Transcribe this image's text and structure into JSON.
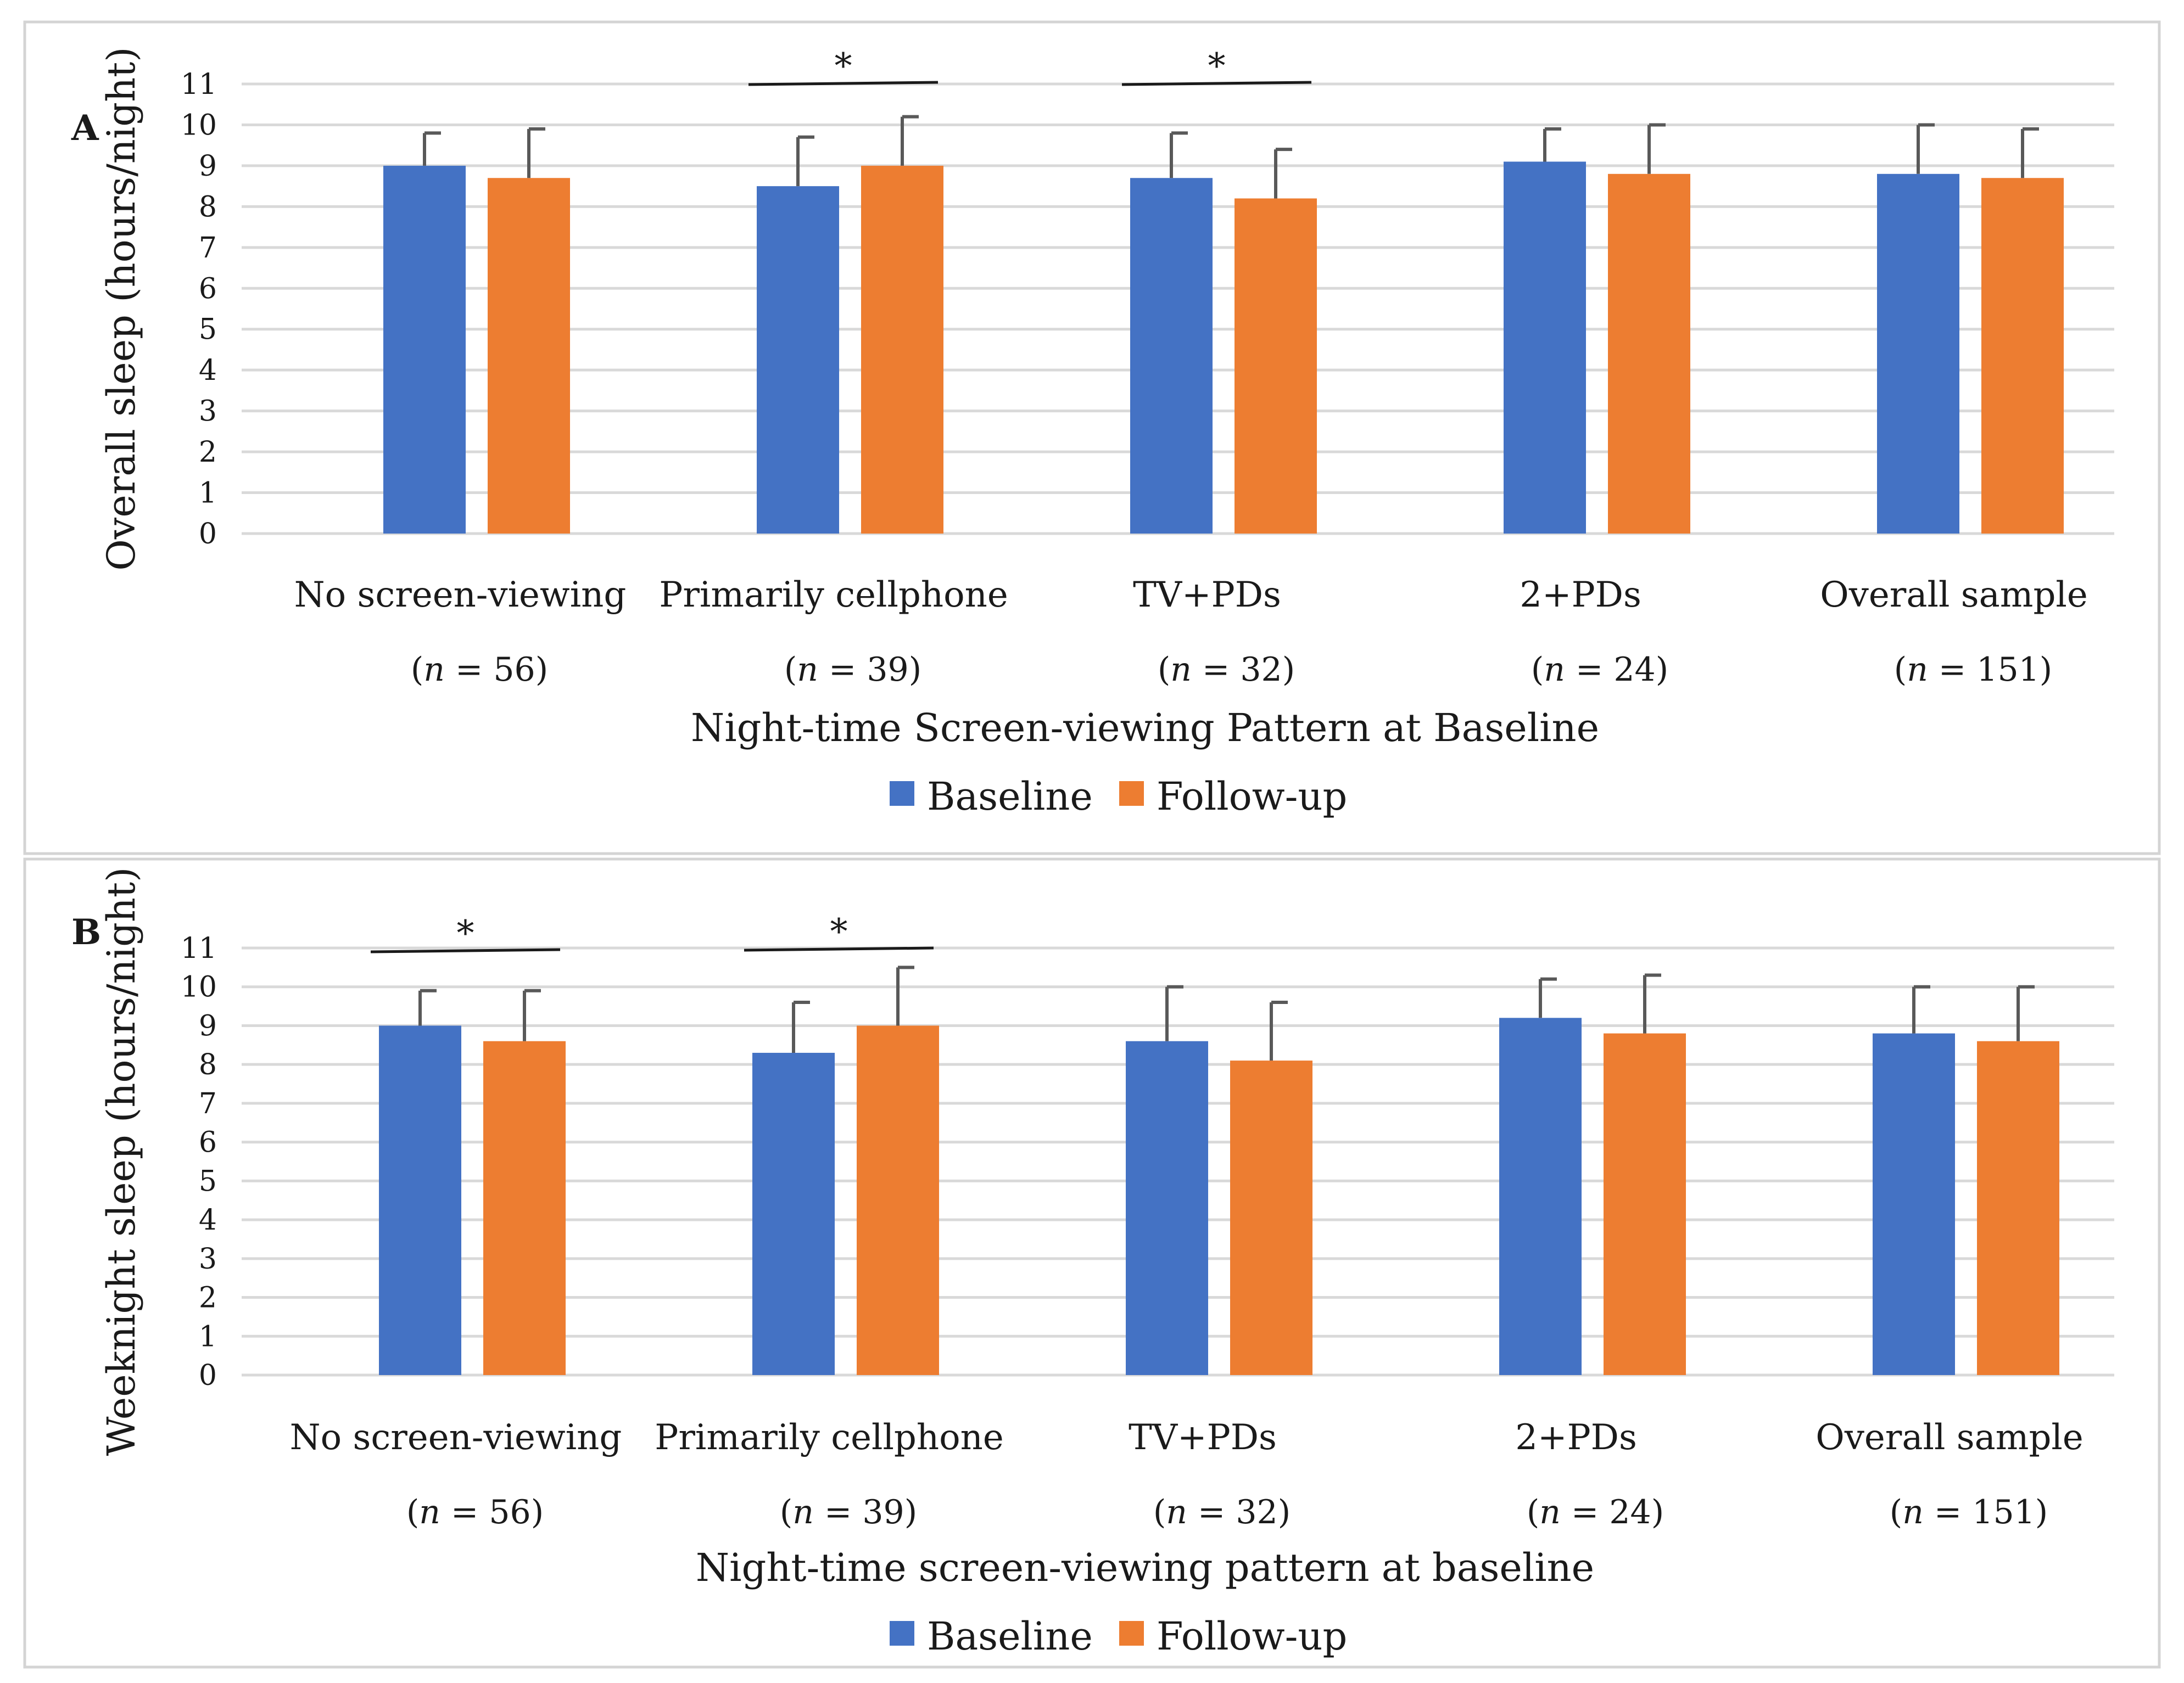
{
  "chart_data": [
    {
      "type": "bar",
      "panel_label": "A",
      "ylabel": "Overall sleep (hours/night)",
      "xlabel": "Night-time Screen-viewing Pattern at Baseline",
      "ylim": [
        0,
        11
      ],
      "yticks": [
        "0",
        "1",
        "2",
        "3",
        "4",
        "5",
        "6",
        "7",
        "8",
        "9",
        "10",
        "11"
      ],
      "categories": [
        "No screen-viewing",
        "Primarily cellphone",
        "TV+PDs",
        "2+PDs",
        "Overall sample"
      ],
      "n_labels": [
        "56",
        "39",
        "32",
        "24",
        "151"
      ],
      "n_symbol": "n",
      "series": [
        {
          "name": "Baseline",
          "color": "#4472c4",
          "values": [
            9.0,
            8.5,
            8.7,
            9.1,
            8.8
          ],
          "errors": [
            0.8,
            1.2,
            1.1,
            0.8,
            1.2
          ]
        },
        {
          "name": "Follow-up",
          "color": "#ed7d31",
          "values": [
            8.7,
            9.0,
            8.2,
            8.8,
            8.7
          ],
          "errors": [
            1.2,
            1.2,
            1.2,
            1.2,
            1.2
          ]
        }
      ],
      "significance": [
        {
          "category_index": 1,
          "symbol": "*"
        },
        {
          "category_index": 2,
          "symbol": "*"
        }
      ],
      "legend": "bottom",
      "grid": true
    },
    {
      "type": "bar",
      "panel_label": "B",
      "ylabel": "Weeknight sleep (hours/night)",
      "xlabel": "Night-time screen-viewing pattern at baseline",
      "ylim": [
        0,
        11
      ],
      "yticks": [
        "0",
        "1",
        "2",
        "3",
        "4",
        "5",
        "6",
        "7",
        "8",
        "9",
        "10",
        "11"
      ],
      "categories": [
        "No screen-viewing",
        "Primarily cellphone",
        "TV+PDs",
        "2+PDs",
        "Overall sample"
      ],
      "n_labels": [
        "56",
        "39",
        "32",
        "24",
        "151"
      ],
      "n_symbol": "n",
      "series": [
        {
          "name": "Baseline",
          "color": "#4472c4",
          "values": [
            9.0,
            8.3,
            8.6,
            9.2,
            8.8
          ],
          "errors": [
            0.9,
            1.3,
            1.4,
            1.0,
            1.2
          ]
        },
        {
          "name": "Follow-up",
          "color": "#ed7d31",
          "values": [
            8.6,
            9.0,
            8.1,
            8.8,
            8.6
          ],
          "errors": [
            1.3,
            1.5,
            1.5,
            1.5,
            1.4
          ]
        }
      ],
      "significance": [
        {
          "category_index": 0,
          "symbol": "*"
        },
        {
          "category_index": 1,
          "symbol": "*"
        }
      ],
      "legend": "bottom",
      "grid": true
    }
  ]
}
